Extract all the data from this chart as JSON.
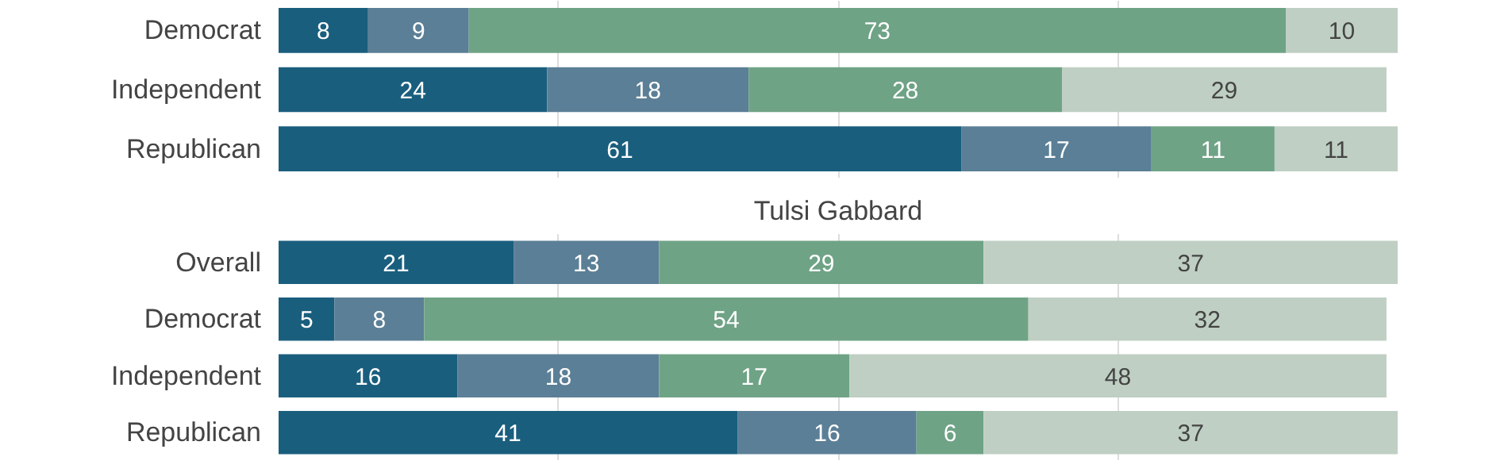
{
  "chart_data": [
    {
      "type": "bar",
      "orientation": "horizontal",
      "stacked": true,
      "categories": [
        "Democrat",
        "Independent",
        "Republican"
      ],
      "series": [
        {
          "color": "#1a5e7e",
          "values": [
            8,
            24,
            61
          ]
        },
        {
          "color": "#5b7f96",
          "values": [
            9,
            18,
            17
          ]
        },
        {
          "color": "#6fa386",
          "values": [
            73,
            28,
            11
          ]
        },
        {
          "color": "#bfcfc3",
          "values": [
            10,
            29,
            11
          ]
        }
      ],
      "xlim": [
        0,
        100
      ],
      "xticks": [
        {
          "value": 25,
          "label": null
        },
        {
          "value": 50,
          "label": null
        },
        {
          "value": 75,
          "label": null
        }
      ],
      "grid": "x",
      "tick_labels": "y",
      "data_labels": true
    },
    {
      "type": "bar",
      "orientation": "horizontal",
      "stacked": true,
      "title": "Tulsi Gabbard",
      "categories": [
        "Overall",
        "Democrat",
        "Independent",
        "Republican"
      ],
      "series": [
        {
          "color": "#1a5e7e",
          "values": [
            21,
            5,
            16,
            41
          ]
        },
        {
          "color": "#5b7f96",
          "values": [
            13,
            8,
            18,
            16
          ]
        },
        {
          "color": "#6fa386",
          "values": [
            29,
            54,
            17,
            6
          ]
        },
        {
          "color": "#bfcfc3",
          "values": [
            37,
            32,
            48,
            37
          ]
        }
      ],
      "xlim": [
        0,
        100
      ],
      "xticks": [
        {
          "value": 25,
          "label": null
        },
        {
          "value": 50,
          "label": null
        },
        {
          "value": 75,
          "label": null
        }
      ],
      "grid": "x",
      "tick_labels": "y",
      "data_labels": true
    }
  ]
}
